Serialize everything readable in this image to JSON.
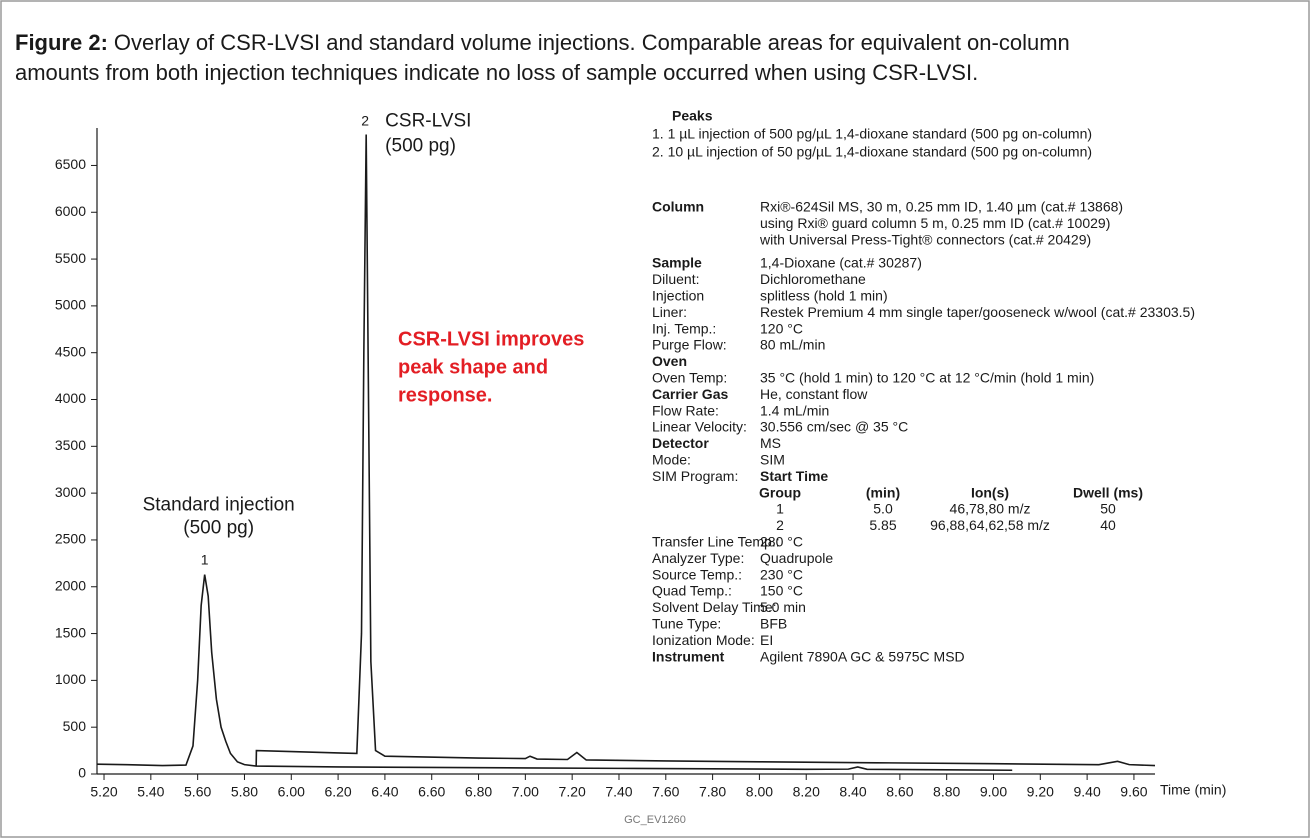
{
  "figure": {
    "label": "Figure 2:",
    "lines": [
      "Overlay of CSR-LVSI and standard volume injections. Comparable areas for equivalent on-column",
      "amounts from both injection techniques indicate no loss of sample occurred when using CSR-LVSI."
    ],
    "code": "GC_EV1260"
  },
  "chart_data": {
    "type": "line",
    "xlabel": "Time (min)",
    "xlim": [
      5.17,
      9.69
    ],
    "ylim": [
      0,
      6900
    ],
    "xticks": [
      {
        "value": 5.2,
        "label": "5.20"
      },
      {
        "value": 5.4,
        "label": "5.40"
      },
      {
        "value": 5.6,
        "label": "5.60"
      },
      {
        "value": 5.8,
        "label": "5.80"
      },
      {
        "value": 6.0,
        "label": "6.00"
      },
      {
        "value": 6.2,
        "label": "6.20"
      },
      {
        "value": 6.4,
        "label": "6.40"
      },
      {
        "value": 6.6,
        "label": "6.60"
      },
      {
        "value": 6.8,
        "label": "6.80"
      },
      {
        "value": 7.0,
        "label": "7.00"
      },
      {
        "value": 7.2,
        "label": "7.20"
      },
      {
        "value": 7.4,
        "label": "7.40"
      },
      {
        "value": 7.6,
        "label": "7.60"
      },
      {
        "value": 7.8,
        "label": "7.80"
      },
      {
        "value": 8.0,
        "label": "8.00"
      },
      {
        "value": 8.2,
        "label": "8.20"
      },
      {
        "value": 8.4,
        "label": "8.40"
      },
      {
        "value": 8.6,
        "label": "8.60"
      },
      {
        "value": 8.8,
        "label": "8.80"
      },
      {
        "value": 9.0,
        "label": "9.00"
      },
      {
        "value": 9.2,
        "label": "9.20"
      },
      {
        "value": 9.4,
        "label": "9.40"
      },
      {
        "value": 9.6,
        "label": "9.60"
      }
    ],
    "yticks": [
      0,
      500,
      1000,
      1500,
      2000,
      2500,
      3000,
      3500,
      4000,
      4500,
      5000,
      5500,
      6000,
      6500
    ],
    "series": [
      {
        "name": "Standard injection",
        "amount": "(500 pg)",
        "peak_label": "1",
        "color": "#1a1a1a",
        "x": [
          5.17,
          5.3,
          5.45,
          5.55,
          5.58,
          5.6,
          5.615,
          5.63,
          5.645,
          5.66,
          5.68,
          5.7,
          5.72,
          5.74,
          5.77,
          5.8,
          5.85,
          6.2,
          6.6,
          7.0,
          7.4,
          7.8,
          8.2,
          8.38,
          8.42,
          8.46,
          8.8,
          9.08
        ],
        "values": [
          105,
          100,
          90,
          95,
          300,
          1000,
          1800,
          2130,
          1900,
          1300,
          800,
          500,
          350,
          220,
          130,
          100,
          85,
          75,
          70,
          65,
          60,
          55,
          50,
          52,
          75,
          50,
          45,
          40
        ]
      },
      {
        "name": "CSR-LVSI",
        "amount": "(500 pg)",
        "peak_label": "2",
        "color": "#1a1a1a",
        "x": [
          5.85,
          5.851,
          6.0,
          6.2,
          6.28,
          6.3,
          6.31,
          6.32,
          6.33,
          6.34,
          6.36,
          6.4,
          6.8,
          7.0,
          7.02,
          7.05,
          7.18,
          7.22,
          7.26,
          7.6,
          8.0,
          8.5,
          9.0,
          9.45,
          9.53,
          9.58,
          9.69
        ],
        "values": [
          80,
          250,
          240,
          225,
          220,
          1500,
          4500,
          6830,
          4000,
          1200,
          250,
          190,
          170,
          165,
          190,
          160,
          155,
          230,
          150,
          140,
          130,
          120,
          110,
          100,
          135,
          100,
          90
        ]
      }
    ],
    "annotation": {
      "lines": [
        "CSR-LVSI improves",
        "peak shape and",
        "response."
      ],
      "color": "#e31e24"
    }
  },
  "peaks": {
    "title": "Peaks",
    "items": [
      "1.  1 µL injection of 500 pg/µL 1,4-dioxane standard (500 pg on-column)",
      "2.  10 µL injection of 50 pg/µL 1,4-dioxane standard (500 pg on-column)"
    ]
  },
  "conditions": [
    {
      "label": "Column",
      "bold": true,
      "value": [
        "Rxi®-624Sil MS, 30 m, 0.25 mm ID, 1.40 µm (cat.# 13868)",
        "using Rxi® guard column 5 m, 0.25 mm ID (cat.# 10029)",
        "with Universal Press-Tight® connectors (cat.# 20429)"
      ]
    },
    {
      "label": "Sample",
      "bold": true,
      "value": "1,4-Dioxane (cat.# 30287)"
    },
    {
      "label": "Diluent:",
      "value": "Dichloromethane"
    },
    {
      "label": "Injection",
      "value": "splitless (hold 1 min)"
    },
    {
      "label": "Liner:",
      "value": "Restek Premium 4 mm single taper/gooseneck w/wool (cat.# 23303.5)"
    },
    {
      "label": "Inj. Temp.:",
      "value": "120 °C"
    },
    {
      "label": "Purge Flow:",
      "value": "80 mL/min"
    },
    {
      "label": "Oven",
      "bold": true
    },
    {
      "label": "Oven Temp:",
      "value": "35 °C (hold 1 min) to 120 °C at 12 °C/min (hold 1 min)"
    },
    {
      "label": "Carrier Gas",
      "bold": true,
      "value": "He, constant flow"
    },
    {
      "label": "Flow Rate:",
      "value": "1.4 mL/min"
    },
    {
      "label": "Linear Velocity:",
      "value": "30.556 cm/sec @ 35 °C"
    },
    {
      "label": "Detector",
      "bold": true,
      "value": "MS"
    },
    {
      "label": "Mode:",
      "value": "SIM"
    },
    {
      "label": "SIM Program:",
      "value": "Start Time",
      "value_bold": true,
      "table": {
        "header": [
          "Group",
          "(min)",
          "Ion(s)",
          "Dwell (ms)"
        ],
        "rows": [
          [
            "1",
            "5.0",
            "46,78,80 m/z",
            "50"
          ],
          [
            "2",
            "5.85",
            "96,88,64,62,58 m/z",
            "40"
          ]
        ]
      }
    },
    {
      "label": "Transfer Line Temp.:",
      "value": "280 °C"
    },
    {
      "label": "Analyzer Type:",
      "value": "Quadrupole"
    },
    {
      "label": "Source Temp.:",
      "value": "230 °C"
    },
    {
      "label": "Quad Temp.:",
      "value": "150 °C"
    },
    {
      "label": "Solvent Delay Time:",
      "value": "5.0 min"
    },
    {
      "label": "Tune Type:",
      "value": "BFB"
    },
    {
      "label": "Ionization Mode:",
      "value": "EI"
    },
    {
      "label": "Instrument",
      "bold": true,
      "value": "Agilent 7890A GC & 5975C MSD"
    }
  ]
}
